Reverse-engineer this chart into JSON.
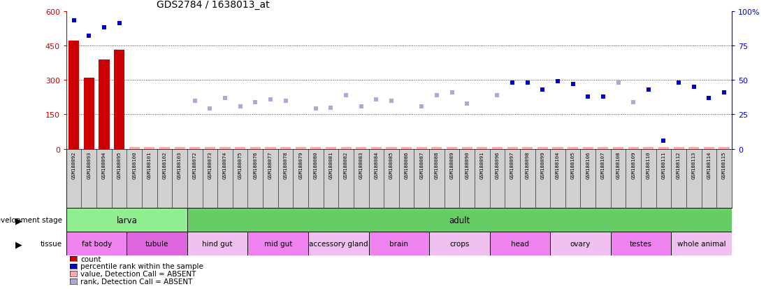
{
  "title": "GDS2784 / 1638013_at",
  "samples": [
    "GSM188092",
    "GSM188093",
    "GSM188094",
    "GSM188095",
    "GSM188100",
    "GSM188101",
    "GSM188102",
    "GSM188103",
    "GSM188072",
    "GSM188073",
    "GSM188074",
    "GSM188075",
    "GSM188076",
    "GSM188077",
    "GSM188078",
    "GSM188079",
    "GSM188080",
    "GSM188081",
    "GSM188082",
    "GSM188083",
    "GSM188084",
    "GSM188085",
    "GSM188086",
    "GSM188087",
    "GSM188088",
    "GSM188089",
    "GSM188090",
    "GSM188091",
    "GSM188096",
    "GSM188097",
    "GSM188098",
    "GSM188099",
    "GSM188104",
    "GSM188105",
    "GSM188106",
    "GSM188107",
    "GSM188108",
    "GSM188109",
    "GSM188110",
    "GSM188111",
    "GSM188112",
    "GSM188113",
    "GSM188114",
    "GSM188115"
  ],
  "count_values": [
    470,
    310,
    390,
    430,
    8,
    8,
    8,
    8,
    8,
    8,
    8,
    8,
    8,
    8,
    8,
    8,
    8,
    8,
    8,
    8,
    8,
    8,
    8,
    8,
    8,
    8,
    8,
    8,
    8,
    8,
    8,
    8,
    8,
    8,
    8,
    8,
    8,
    8,
    8,
    8,
    8,
    8,
    8,
    8
  ],
  "count_present": [
    true,
    true,
    true,
    true,
    false,
    false,
    false,
    false,
    false,
    false,
    false,
    false,
    false,
    false,
    false,
    false,
    false,
    false,
    false,
    false,
    false,
    false,
    false,
    false,
    false,
    false,
    false,
    false,
    false,
    false,
    false,
    false,
    false,
    false,
    false,
    false,
    false,
    false,
    false,
    false,
    false,
    false,
    false,
    false
  ],
  "rank_pct": [
    93,
    82,
    88,
    91,
    null,
    null,
    null,
    null,
    35,
    29,
    37,
    31,
    34,
    36,
    35,
    null,
    29,
    30,
    39,
    31,
    36,
    35,
    null,
    31,
    39,
    41,
    33,
    null,
    39,
    48,
    48,
    43,
    49,
    47,
    38,
    38,
    48,
    34,
    43,
    6,
    48,
    45,
    37,
    41
  ],
  "rank_absent": [
    false,
    false,
    false,
    false,
    null,
    null,
    null,
    null,
    true,
    true,
    true,
    true,
    true,
    true,
    true,
    null,
    true,
    true,
    true,
    true,
    true,
    true,
    null,
    true,
    true,
    true,
    true,
    null,
    true,
    false,
    false,
    false,
    false,
    false,
    false,
    false,
    true,
    true,
    false,
    false,
    false,
    false,
    false,
    false
  ],
  "ylim_left": [
    0,
    600
  ],
  "ylim_right": [
    0,
    100
  ],
  "yticks_left": [
    0,
    150,
    300,
    450,
    600
  ],
  "yticks_right": [
    0,
    25,
    50,
    75,
    100
  ],
  "ytick_labels_left": [
    "0",
    "150",
    "300",
    "450",
    "600"
  ],
  "ytick_labels_right": [
    "0",
    "25",
    "50",
    "75",
    "100%"
  ],
  "hline_pct": [
    25,
    50,
    75
  ],
  "dev_stage_groups": [
    {
      "label": "larva",
      "start": 0,
      "end": 7,
      "color": "#90ee90"
    },
    {
      "label": "adult",
      "start": 8,
      "end": 43,
      "color": "#66cc66"
    }
  ],
  "tissue_groups": [
    {
      "label": "fat body",
      "start": 0,
      "end": 3,
      "color": "#ee82ee"
    },
    {
      "label": "tubule",
      "start": 4,
      "end": 7,
      "color": "#dd66dd"
    },
    {
      "label": "hind gut",
      "start": 8,
      "end": 11,
      "color": "#f0c0f0"
    },
    {
      "label": "mid gut",
      "start": 12,
      "end": 15,
      "color": "#ee82ee"
    },
    {
      "label": "accessory gland",
      "start": 16,
      "end": 19,
      "color": "#f0c0f0"
    },
    {
      "label": "brain",
      "start": 20,
      "end": 23,
      "color": "#ee82ee"
    },
    {
      "label": "crops",
      "start": 24,
      "end": 27,
      "color": "#f0c0f0"
    },
    {
      "label": "head",
      "start": 28,
      "end": 31,
      "color": "#ee82ee"
    },
    {
      "label": "ovary",
      "start": 32,
      "end": 35,
      "color": "#f0c0f0"
    },
    {
      "label": "testes",
      "start": 36,
      "end": 39,
      "color": "#ee82ee"
    },
    {
      "label": "whole animal",
      "start": 40,
      "end": 43,
      "color": "#f0c0f0"
    }
  ],
  "bar_color_present": "#cc0000",
  "bar_color_absent": "#ffaaaa",
  "rank_color_present": "#0000cc",
  "rank_color_absent": "#aaaadd",
  "bg_color": "#ffffff",
  "dotline_color": "#444444",
  "left_axis_color": "#cc0000",
  "right_axis_color": "#0000cc",
  "xlabels_bg": "#d0d0d0",
  "legend_items": [
    {
      "label": "count",
      "color": "#cc0000"
    },
    {
      "label": "percentile rank within the sample",
      "color": "#0000cc"
    },
    {
      "label": "value, Detection Call = ABSENT",
      "color": "#ffaaaa"
    },
    {
      "label": "rank, Detection Call = ABSENT",
      "color": "#aaaadd"
    }
  ]
}
